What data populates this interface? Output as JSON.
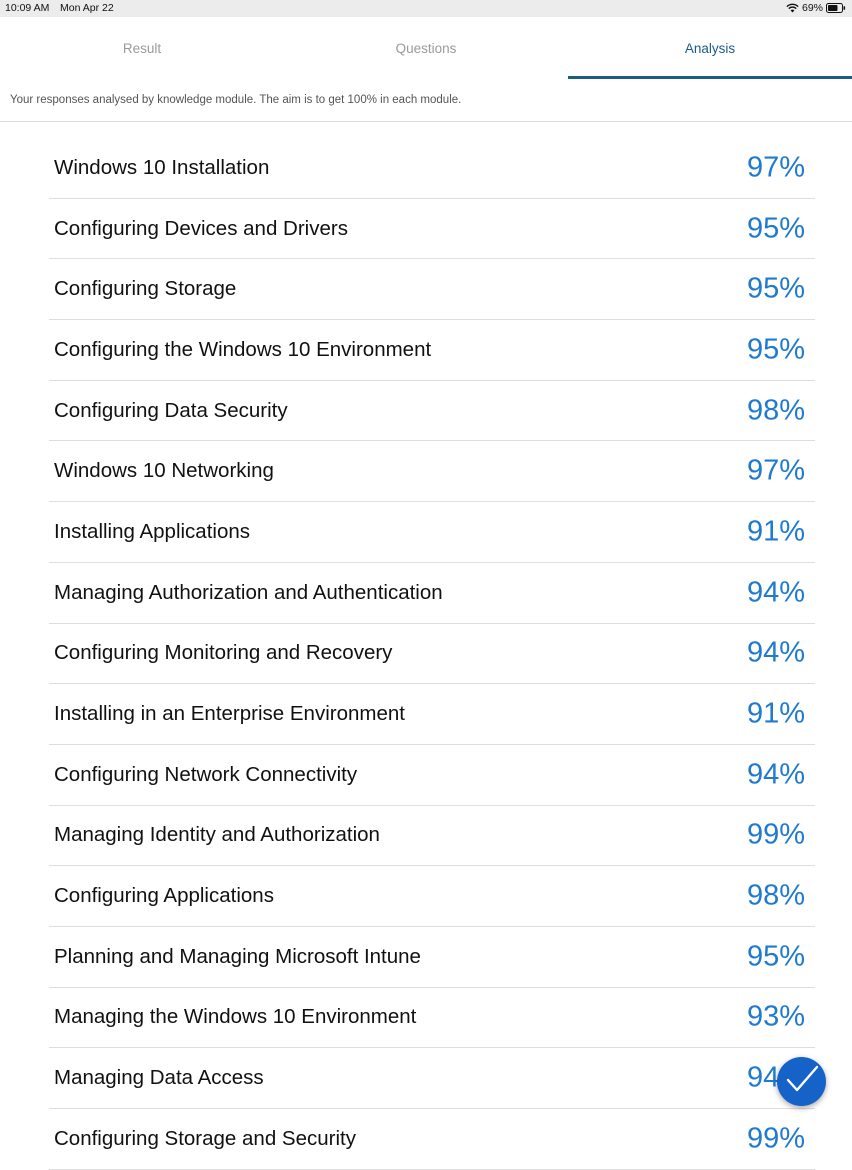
{
  "status_bar": {
    "time": "10:09 AM",
    "date": "Mon Apr 22",
    "battery": "69%"
  },
  "tabs": [
    {
      "label": "Result",
      "active": false
    },
    {
      "label": "Questions",
      "active": false
    },
    {
      "label": "Analysis",
      "active": true
    }
  ],
  "subheader": "Your responses analysed by knowledge module. The aim is to get 100% in each module.",
  "modules": [
    {
      "name": "Windows 10 Installation",
      "score": "97%"
    },
    {
      "name": "Configuring Devices and Drivers",
      "score": "95%"
    },
    {
      "name": "Configuring Storage",
      "score": "95%"
    },
    {
      "name": "Configuring the Windows 10 Environment",
      "score": "95%"
    },
    {
      "name": "Configuring Data Security",
      "score": "98%"
    },
    {
      "name": "Windows 10 Networking",
      "score": "97%"
    },
    {
      "name": "Installing Applications",
      "score": "91%"
    },
    {
      "name": "Managing Authorization and Authentication",
      "score": "94%"
    },
    {
      "name": "Configuring Monitoring and Recovery",
      "score": "94%"
    },
    {
      "name": "Installing in an Enterprise Environment",
      "score": "91%"
    },
    {
      "name": "Configuring Network Connectivity",
      "score": "94%"
    },
    {
      "name": "Managing Identity and Authorization",
      "score": "99%"
    },
    {
      "name": "Configuring Applications",
      "score": "98%"
    },
    {
      "name": "Planning and Managing Microsoft Intune",
      "score": "95%"
    },
    {
      "name": "Managing the Windows 10 Environment",
      "score": "93%"
    },
    {
      "name": "Managing Data Access",
      "score": "94%"
    },
    {
      "name": "Configuring Storage and Security",
      "score": "99%"
    }
  ],
  "colors": {
    "accent": "#1f7ad0",
    "tab_active": "#1b5d86",
    "fab": "#1563c9"
  },
  "icons": {
    "fab": "checkmark-icon",
    "wifi": "wifi-icon",
    "battery": "battery-icon"
  }
}
